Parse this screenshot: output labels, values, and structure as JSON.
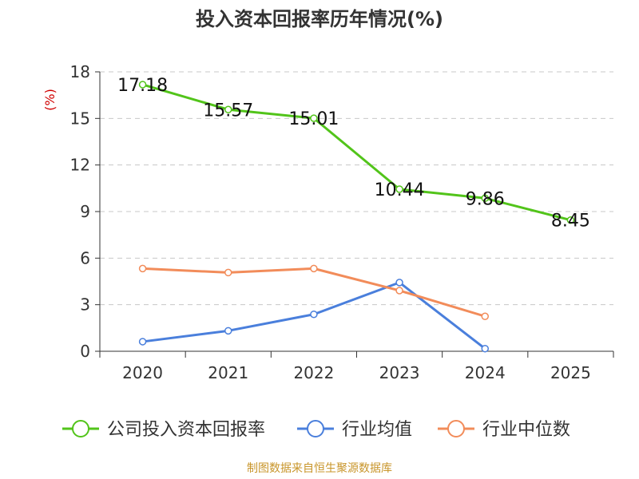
{
  "chart_data": {
    "type": "line",
    "title": "投入资本回报率历年情况(%)",
    "ylabel": "(%)",
    "categories": [
      "2020",
      "2021",
      "2022",
      "2023",
      "2024",
      "2025"
    ],
    "ylim": [
      0,
      18
    ],
    "yticks": [
      0,
      3,
      6,
      9,
      12,
      15,
      18
    ],
    "grid": true,
    "legend_position": "bottom",
    "series": [
      {
        "name": "公司投入资本回报率",
        "color": "#52c41a",
        "values": [
          17.18,
          15.57,
          15.01,
          10.44,
          9.86,
          8.45
        ],
        "labels": [
          "17.18",
          "15.57",
          "15.01",
          "10.44",
          "9.86",
          "8.45"
        ]
      },
      {
        "name": "行业均值",
        "color": "#4a7fdc",
        "values": [
          0.62,
          1.32,
          2.38,
          4.43,
          0.17,
          null
        ]
      },
      {
        "name": "行业中位数",
        "color": "#f28c5a",
        "values": [
          5.33,
          5.07,
          5.33,
          3.91,
          2.25,
          null
        ]
      }
    ]
  },
  "source": "制图数据来自恒生聚源数据库"
}
